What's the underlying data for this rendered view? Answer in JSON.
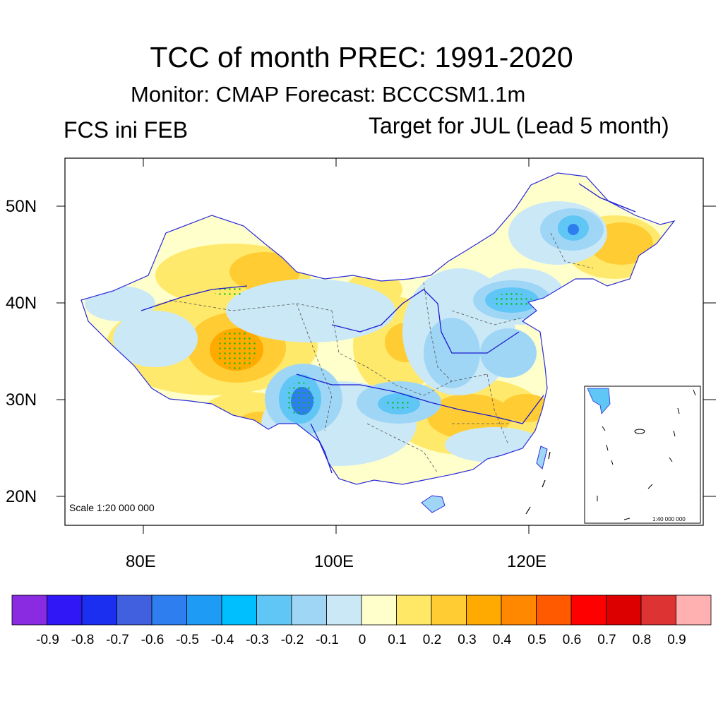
{
  "title": "TCC of month PREC: 1991-2020",
  "subtitle": "Monitor: CMAP   Forecast: BCCCSM1.1m",
  "left_label": "FCS ini FEB",
  "right_label": "Target for JUL (Lead 5 month)",
  "map": {
    "lat_labels": [
      "50N",
      "40N",
      "30N",
      "20N"
    ],
    "lon_labels": [
      "80E",
      "100E",
      "120E"
    ],
    "scale_main": "Scale 1:20 000 000",
    "scale_inset": "1:40 000 000"
  },
  "colorbar": {
    "colors": [
      "#8a2be2",
      "#3017f5",
      "#1a2ff0",
      "#4060e0",
      "#2e7ef0",
      "#1e9bf5",
      "#00bfff",
      "#5fc6f5",
      "#a0d6f5",
      "#cbe8f7",
      "#ffffcc",
      "#ffe866",
      "#ffcc33",
      "#ffaa00",
      "#ff8800",
      "#ff5a00",
      "#ff0000",
      "#dd0000",
      "#dd3333",
      "#ffb0b0"
    ],
    "tick_labels": [
      "-0.9",
      "-0.8",
      "-0.7",
      "-0.6",
      "-0.5",
      "-0.4",
      "-0.3",
      "-0.2",
      "-0.1",
      "0",
      "0.1",
      "0.2",
      "0.3",
      "0.4",
      "0.5",
      "0.6",
      "0.7",
      "0.8",
      "0.9"
    ]
  }
}
